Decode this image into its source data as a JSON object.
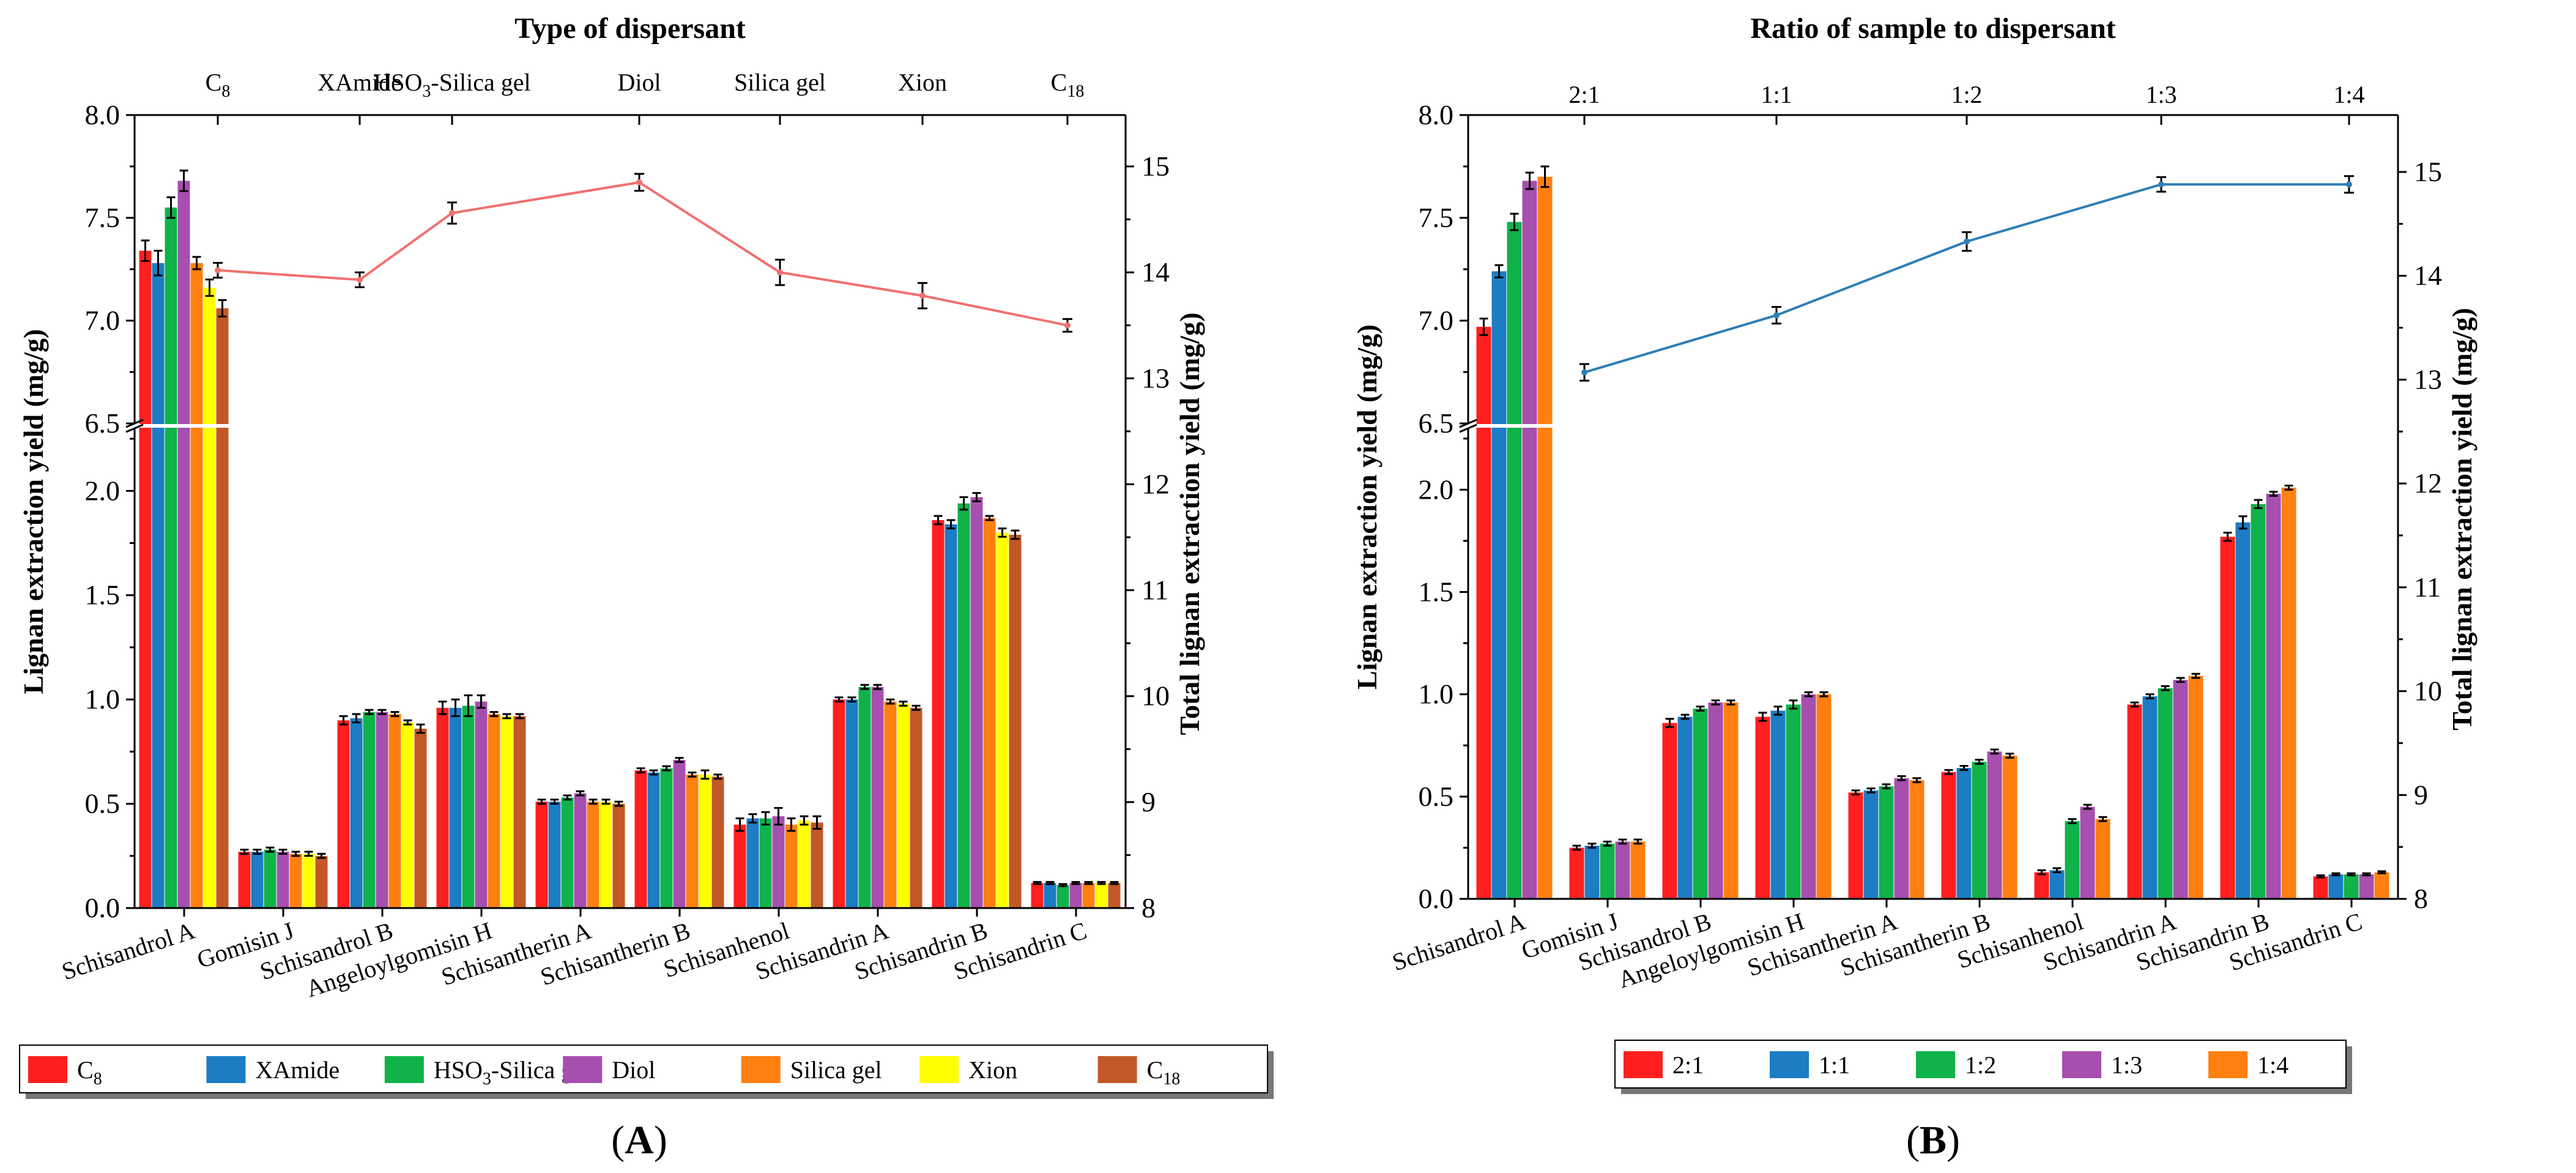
{
  "chart_data": [
    {
      "panel_label": "A",
      "type": "bar",
      "title": "Type of dispersant",
      "ylabel_left": "Lignan extraction yield (mg/g)",
      "ylabel_right": "Total lignan extraction yield (mg/g)",
      "categories": [
        "Schisandrol A",
        "Gomisin J",
        "Schisandrol B",
        "Angeloylgomisin H",
        "Schisantherin A",
        "Schisantherin B",
        "Schisanhenol",
        "Schisandrin A",
        "Schisandrin B",
        "Schisandrin C"
      ],
      "y_lower_ticks": [
        "0.0",
        "0.5",
        "1.0",
        "1.5",
        "2.0"
      ],
      "y_upper_ticks": [
        "6.5",
        "7.0",
        "7.5",
        "8.0"
      ],
      "y_right_ticks": [
        "8",
        "9",
        "10",
        "11",
        "12",
        "13",
        "14",
        "15"
      ],
      "ylim_lower": [
        0,
        2.3
      ],
      "ylim_upper": [
        6.5,
        8.0
      ],
      "ylim_right": [
        8,
        15.4
      ],
      "series": [
        {
          "name": "C8",
          "label_base": "C",
          "label_sub": "8",
          "color": "#ff1f1f",
          "values": [
            7.34,
            0.27,
            0.9,
            0.96,
            0.51,
            0.66,
            0.4,
            1.0,
            1.86,
            0.12
          ],
          "errors": [
            0.05,
            0.01,
            0.02,
            0.03,
            0.01,
            0.01,
            0.03,
            0.01,
            0.02,
            0.005
          ]
        },
        {
          "name": "XAmide",
          "label_base": "XAmide",
          "label_sub": "",
          "color": "#1c7cc4",
          "values": [
            7.28,
            0.27,
            0.91,
            0.96,
            0.51,
            0.65,
            0.43,
            1.0,
            1.84,
            0.12
          ],
          "errors": [
            0.06,
            0.01,
            0.02,
            0.04,
            0.01,
            0.01,
            0.02,
            0.01,
            0.02,
            0.005
          ]
        },
        {
          "name": "HSO3-Silica gel",
          "label_base": "HSO",
          "label_sub": "3",
          "label_tail": "-Silica gel",
          "color": "#10b24a",
          "values": [
            7.55,
            0.28,
            0.94,
            0.97,
            0.53,
            0.67,
            0.43,
            1.06,
            1.94,
            0.11
          ],
          "errors": [
            0.05,
            0.01,
            0.01,
            0.05,
            0.01,
            0.01,
            0.03,
            0.01,
            0.03,
            0.005
          ]
        },
        {
          "name": "Diol",
          "label_base": "Diol",
          "label_sub": "",
          "color": "#a64fae",
          "values": [
            7.68,
            0.27,
            0.94,
            0.99,
            0.55,
            0.71,
            0.44,
            1.06,
            1.97,
            0.12
          ],
          "errors": [
            0.05,
            0.01,
            0.01,
            0.03,
            0.01,
            0.01,
            0.04,
            0.01,
            0.02,
            0.005
          ]
        },
        {
          "name": "Silica gel",
          "label_base": "Silica gel",
          "label_sub": "",
          "color": "#ff7f10",
          "values": [
            7.28,
            0.26,
            0.93,
            0.93,
            0.51,
            0.64,
            0.4,
            0.99,
            1.87,
            0.12
          ],
          "errors": [
            0.03,
            0.01,
            0.01,
            0.01,
            0.01,
            0.01,
            0.03,
            0.01,
            0.01,
            0.005
          ]
        },
        {
          "name": "Xion",
          "label_base": "Xion",
          "label_sub": "",
          "color": "#ffff00",
          "values": [
            7.16,
            0.26,
            0.89,
            0.92,
            0.51,
            0.64,
            0.42,
            0.98,
            1.8,
            0.12
          ],
          "errors": [
            0.04,
            0.01,
            0.01,
            0.01,
            0.01,
            0.02,
            0.02,
            0.01,
            0.02,
            0.005
          ]
        },
        {
          "name": "C18",
          "label_base": "C",
          "label_sub": "18",
          "color": "#c25826",
          "values": [
            7.06,
            0.25,
            0.86,
            0.92,
            0.5,
            0.63,
            0.41,
            0.96,
            1.79,
            0.12
          ],
          "errors": [
            0.04,
            0.01,
            0.02,
            0.01,
            0.01,
            0.01,
            0.03,
            0.01,
            0.02,
            0.005
          ]
        }
      ],
      "line_series": {
        "name": "Total lignan extraction yield",
        "color": "#f0706e",
        "labels": [
          "C8",
          "XAmide",
          "HSO3-Silica gel",
          "Diol",
          "Silica gel",
          "Xion",
          "C18"
        ],
        "values": [
          14.02,
          13.93,
          14.56,
          14.85,
          14.0,
          13.78,
          13.5
        ],
        "errors": [
          0.07,
          0.07,
          0.1,
          0.08,
          0.12,
          0.12,
          0.06
        ]
      },
      "top_axis_labels": [
        {
          "base": "C",
          "sub": "8",
          "tail": ""
        },
        {
          "base": "XAmide",
          "sub": "",
          "tail": ""
        },
        {
          "base": "HSO",
          "sub": "3",
          "tail": "-Silica gel"
        },
        {
          "base": "Diol",
          "sub": "",
          "tail": ""
        },
        {
          "base": "Silica gel",
          "sub": "",
          "tail": ""
        },
        {
          "base": "Xion",
          "sub": "",
          "tail": ""
        },
        {
          "base": "C",
          "sub": "18",
          "tail": ""
        }
      ]
    },
    {
      "panel_label": "B",
      "type": "bar",
      "title": "Ratio of sample to dispersant",
      "ylabel_left": "Lignan extraction yield (mg/g)",
      "ylabel_right": "Total lignan extraction yield (mg/g)",
      "categories": [
        "Schisandrol A",
        "Gomisin J",
        "Schisandrol B",
        "Angeloylgomisin H",
        "Schisantherin A",
        "Schisantherin B",
        "Schisanhenol",
        "Schisandrin A",
        "Schisandrin B",
        "Schisandrin C"
      ],
      "y_lower_ticks": [
        "0.0",
        "0.5",
        "1.0",
        "1.5",
        "2.0"
      ],
      "y_upper_ticks": [
        "6.5",
        "7.0",
        "7.5",
        "8.0"
      ],
      "y_right_ticks": [
        "8",
        "9",
        "10",
        "11",
        "12",
        "13",
        "14",
        "15"
      ],
      "ylim_lower": [
        0,
        2.3
      ],
      "ylim_upper": [
        6.5,
        8.0
      ],
      "ylim_right": [
        8,
        15.4
      ],
      "series": [
        {
          "name": "2:1",
          "label_base": "2:1",
          "label_sub": "",
          "color": "#ff1f1f",
          "values": [
            6.97,
            0.25,
            0.86,
            0.89,
            0.52,
            0.62,
            0.13,
            0.95,
            1.77,
            0.11
          ],
          "errors": [
            0.04,
            0.01,
            0.02,
            0.02,
            0.01,
            0.01,
            0.01,
            0.01,
            0.02,
            0.005
          ]
        },
        {
          "name": "1:1",
          "label_base": "1:1",
          "label_sub": "",
          "color": "#1c7cc4",
          "values": [
            7.24,
            0.26,
            0.89,
            0.92,
            0.53,
            0.64,
            0.14,
            0.99,
            1.84,
            0.12
          ],
          "errors": [
            0.03,
            0.01,
            0.01,
            0.02,
            0.01,
            0.01,
            0.01,
            0.01,
            0.03,
            0.005
          ]
        },
        {
          "name": "1:2",
          "label_base": "1:2",
          "label_sub": "",
          "color": "#10b24a",
          "values": [
            7.48,
            0.27,
            0.93,
            0.95,
            0.55,
            0.67,
            0.38,
            1.03,
            1.93,
            0.12
          ],
          "errors": [
            0.04,
            0.01,
            0.01,
            0.02,
            0.01,
            0.01,
            0.01,
            0.01,
            0.02,
            0.005
          ]
        },
        {
          "name": "1:3",
          "label_base": "1:3",
          "label_sub": "",
          "color": "#a64fae",
          "values": [
            7.68,
            0.28,
            0.96,
            1.0,
            0.59,
            0.72,
            0.45,
            1.07,
            1.98,
            0.12
          ],
          "errors": [
            0.04,
            0.01,
            0.01,
            0.01,
            0.01,
            0.01,
            0.01,
            0.01,
            0.01,
            0.005
          ]
        },
        {
          "name": "1:4",
          "label_base": "1:4",
          "label_sub": "",
          "color": "#ff7f10",
          "values": [
            7.7,
            0.28,
            0.96,
            1.0,
            0.58,
            0.7,
            0.39,
            1.09,
            2.01,
            0.13
          ],
          "errors": [
            0.05,
            0.01,
            0.01,
            0.01,
            0.01,
            0.01,
            0.01,
            0.01,
            0.01,
            0.005
          ]
        }
      ],
      "line_series": {
        "name": "Total lignan extraction yield",
        "color": "#2f7fb5",
        "labels": [
          "2:1",
          "1:1",
          "1:2",
          "1:3",
          "1:4"
        ],
        "values": [
          13.07,
          13.62,
          14.33,
          14.88,
          14.88
        ],
        "errors": [
          0.08,
          0.08,
          0.09,
          0.07,
          0.08
        ]
      },
      "top_axis_labels": [
        {
          "base": "2:1",
          "sub": "",
          "tail": ""
        },
        {
          "base": "1:1",
          "sub": "",
          "tail": ""
        },
        {
          "base": "1:2",
          "sub": "",
          "tail": ""
        },
        {
          "base": "1:3",
          "sub": "",
          "tail": ""
        },
        {
          "base": "1:4",
          "sub": "",
          "tail": ""
        }
      ]
    }
  ]
}
